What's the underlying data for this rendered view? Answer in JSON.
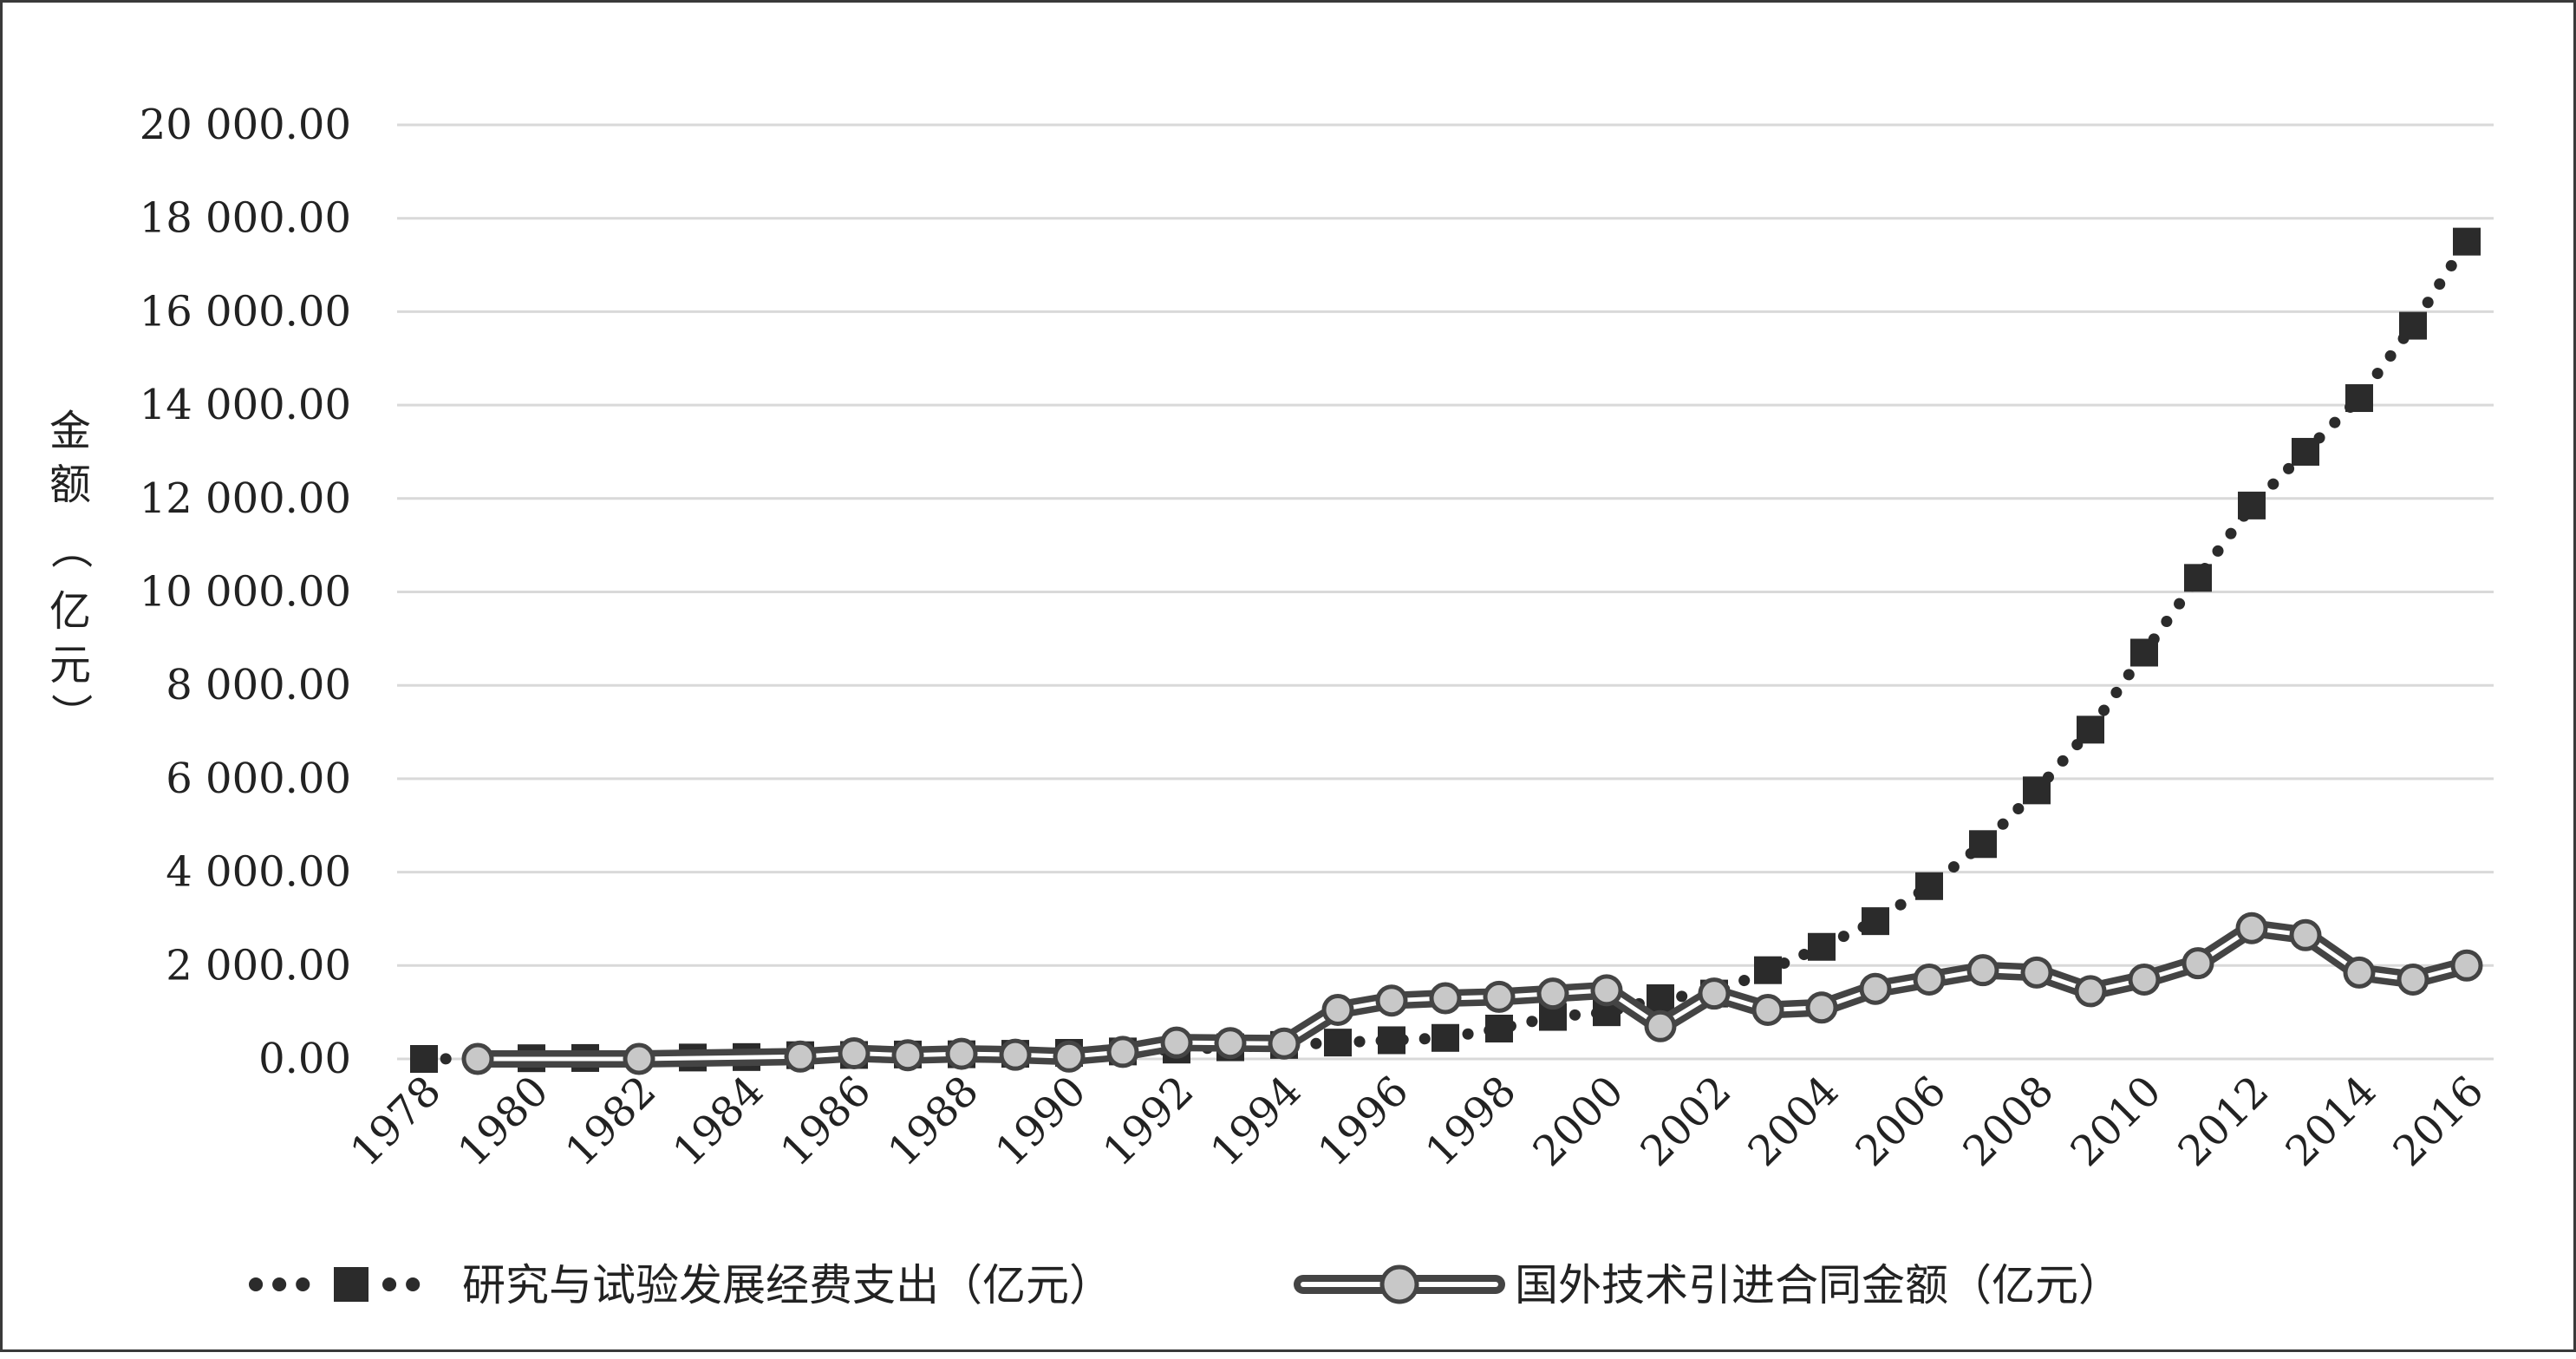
{
  "chart_data": {
    "type": "line",
    "title": "",
    "xlabel": "",
    "ylabel": "金额（亿元）",
    "ylabel_chars": [
      "金",
      "额",
      "（",
      "亿",
      "元",
      "）"
    ],
    "x": [
      1978,
      1979,
      1980,
      1981,
      1982,
      1983,
      1984,
      1985,
      1986,
      1987,
      1988,
      1989,
      1990,
      1991,
      1992,
      1993,
      1994,
      1995,
      1996,
      1997,
      1998,
      1999,
      2000,
      2001,
      2002,
      2003,
      2004,
      2005,
      2006,
      2007,
      2008,
      2009,
      2010,
      2011,
      2012,
      2013,
      2014,
      2015,
      2016
    ],
    "x_tick_labels": [
      "1978",
      "1980",
      "1982",
      "1984",
      "1986",
      "1988",
      "1990",
      "1992",
      "1994",
      "1996",
      "1998",
      "2000",
      "2002",
      "2004",
      "2006",
      "2008",
      "2010",
      "2012",
      "2014",
      "2016"
    ],
    "ylim": [
      0,
      20000
    ],
    "y_tick_values": [
      0,
      2000,
      4000,
      6000,
      8000,
      10000,
      12000,
      14000,
      16000,
      18000,
      20000
    ],
    "y_tick_labels": [
      "0.00",
      "2 000.00",
      "4 000.00",
      "6 000.00",
      "8 000.00",
      "10 000.00",
      "12 000.00",
      "14 000.00",
      "16 000.00",
      "18 000.00",
      "20 000.00"
    ],
    "grid": true,
    "legend_position": "bottom",
    "series": [
      {
        "name": "研究与试验发展经费支出（亿元）",
        "style": "dotted-square",
        "color": "#2b2b2b",
        "points": [
          [
            1978,
            0
          ],
          [
            1980,
            15
          ],
          [
            1981,
            20
          ],
          [
            1983,
            30
          ],
          [
            1984,
            40
          ],
          [
            1985,
            80
          ],
          [
            1986,
            85
          ],
          [
            1987,
            95
          ],
          [
            1988,
            100
          ],
          [
            1989,
            110
          ],
          [
            1990,
            130
          ],
          [
            1991,
            160
          ],
          [
            1992,
            200
          ],
          [
            1993,
            250
          ],
          [
            1994,
            300
          ],
          [
            1995,
            350
          ],
          [
            1996,
            400
          ],
          [
            1997,
            450
          ],
          [
            1998,
            650
          ],
          [
            1999,
            900
          ],
          [
            2000,
            1000
          ],
          [
            2001,
            1300
          ],
          [
            2002,
            1400
          ],
          [
            2003,
            1900
          ],
          [
            2004,
            2400
          ],
          [
            2005,
            2950
          ],
          [
            2006,
            3700
          ],
          [
            2007,
            4600
          ],
          [
            2008,
            5750
          ],
          [
            2009,
            7050
          ],
          [
            2010,
            8700
          ],
          [
            2011,
            10300
          ],
          [
            2012,
            11850
          ],
          [
            2013,
            13000
          ],
          [
            2014,
            14150
          ],
          [
            2015,
            15700
          ],
          [
            2016,
            17500
          ]
        ]
      },
      {
        "name": "国外技术引进合同金额（亿元）",
        "style": "double-line-circle",
        "color": "#444444",
        "marker_fill": "#c8c8c8",
        "points": [
          [
            1979,
            0
          ],
          [
            1982,
            0
          ],
          [
            1985,
            50
          ],
          [
            1986,
            120
          ],
          [
            1987,
            80
          ],
          [
            1988,
            110
          ],
          [
            1989,
            90
          ],
          [
            1990,
            50
          ],
          [
            1991,
            150
          ],
          [
            1992,
            350
          ],
          [
            1993,
            340
          ],
          [
            1994,
            330
          ],
          [
            1995,
            1050
          ],
          [
            1996,
            1250
          ],
          [
            1997,
            1300
          ],
          [
            1998,
            1330
          ],
          [
            1999,
            1400
          ],
          [
            2000,
            1470
          ],
          [
            2001,
            700
          ],
          [
            2002,
            1400
          ],
          [
            2003,
            1050
          ],
          [
            2004,
            1100
          ],
          [
            2005,
            1500
          ],
          [
            2006,
            1700
          ],
          [
            2007,
            1900
          ],
          [
            2008,
            1850
          ],
          [
            2009,
            1450
          ],
          [
            2010,
            1700
          ],
          [
            2011,
            2050
          ],
          [
            2012,
            2800
          ],
          [
            2013,
            2650
          ],
          [
            2014,
            1850
          ],
          [
            2015,
            1700
          ],
          [
            2016,
            2000
          ]
        ]
      }
    ]
  },
  "legend": {
    "items": [
      {
        "label": "研究与试验发展经费支出（亿元）"
      },
      {
        "label": "国外技术引进合同金额（亿元）"
      }
    ]
  }
}
